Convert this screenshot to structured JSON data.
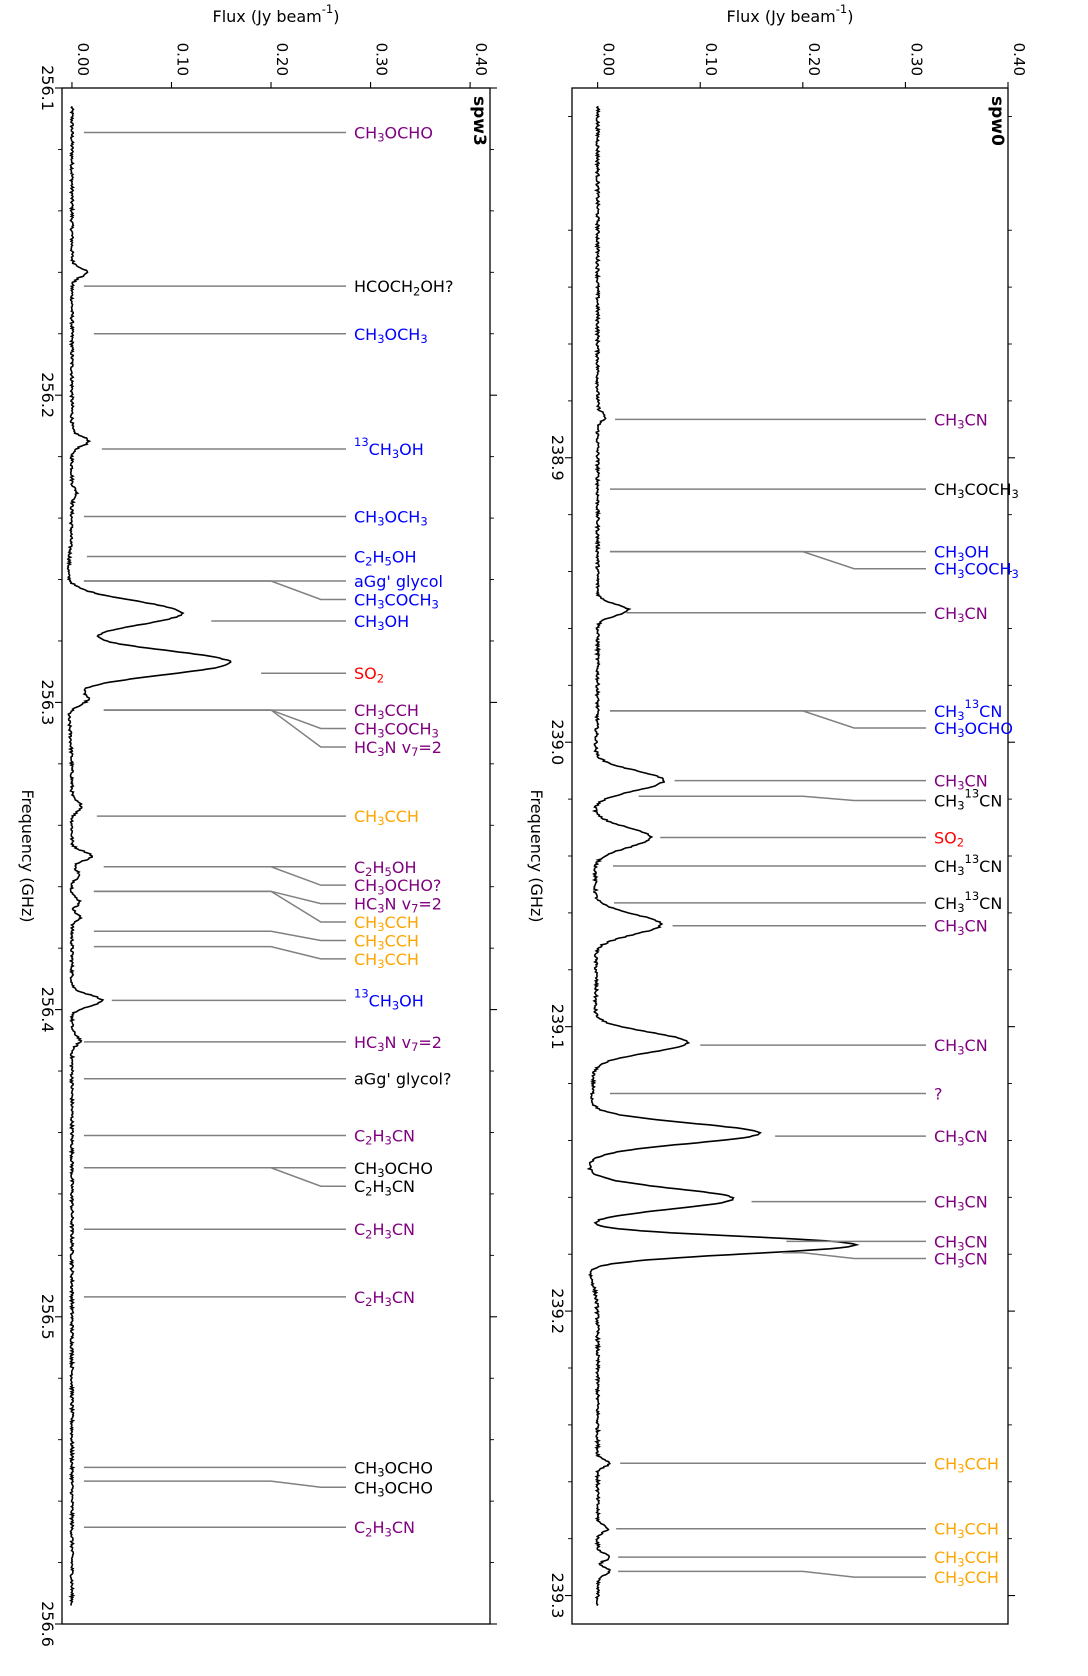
{
  "figure": {
    "xlabel": "Flux (Jy beam$^{-1}$)",
    "ylabel": "Frequency (GHz)",
    "colors": {
      "black": "#000000",
      "purple": "#800080",
      "blue": "#0000ff",
      "red": "#ff0000",
      "orange": "#ffa500",
      "connector": "#808080"
    }
  },
  "chart_data": [
    {
      "type": "line",
      "panel_label": "spw3",
      "xlim": [
        -0.01,
        0.42
      ],
      "ylim": [
        256.6,
        256.1
      ],
      "xticks": [
        "0.00",
        "0.10",
        "0.20",
        "0.30",
        "0.40"
      ],
      "xtick_values": [
        0.0,
        0.1,
        0.2,
        0.3,
        0.4
      ],
      "yticks": [
        "256.1",
        "256.2",
        "256.3",
        "256.4",
        "256.5",
        "256.6"
      ],
      "ytick_values": [
        256.1,
        256.2,
        256.3,
        256.4,
        256.5,
        256.6
      ],
      "baseline": 0.0,
      "spectrum_lines": [
        {
          "freq": 256.16,
          "amp": 0.015,
          "width": 0.0015
        },
        {
          "freq": 256.215,
          "amp": 0.017,
          "width": 0.0015
        },
        {
          "freq": 256.232,
          "amp": 0.005,
          "width": 0.0015
        },
        {
          "freq": 256.271,
          "amp": 0.12,
          "width": 0.004
        },
        {
          "freq": 256.287,
          "amp": 0.17,
          "width": 0.004
        },
        {
          "freq": 256.299,
          "amp": 0.02,
          "width": 0.002
        },
        {
          "freq": 256.334,
          "amp": 0.01,
          "width": 0.0015
        },
        {
          "freq": 256.35,
          "amp": 0.02,
          "width": 0.0015
        },
        {
          "freq": 256.356,
          "amp": 0.007,
          "width": 0.0015
        },
        {
          "freq": 256.365,
          "amp": 0.008,
          "width": 0.0012
        },
        {
          "freq": 256.37,
          "amp": 0.008,
          "width": 0.0012
        },
        {
          "freq": 256.397,
          "amp": 0.03,
          "width": 0.0018
        },
        {
          "freq": 256.41,
          "amp": 0.008,
          "width": 0.0015
        }
      ],
      "annotations": [
        {
          "label": "CH$_3$OCHO",
          "color": "purple",
          "freq": 256.1145,
          "flux": 0.012,
          "label_freq": 256.1145
        },
        {
          "label": "HCOCH$_2$OH?",
          "color": "black",
          "freq": 256.1645,
          "flux": 0.012,
          "label_freq": 256.1645
        },
        {
          "label": "CH$_3$OCH$_3$",
          "color": "blue",
          "freq": 256.18,
          "flux": 0.022,
          "label_freq": 256.18
        },
        {
          "label": "$^{13}$CH$_3$OH",
          "color": "blue",
          "freq": 256.2175,
          "flux": 0.03,
          "label_freq": 256.2175
        },
        {
          "label": "CH$_3$OCH$_3$",
          "color": "blue",
          "freq": 256.2395,
          "flux": 0.012,
          "label_freq": 256.2395
        },
        {
          "label": "C$_2$H$_5$OH",
          "color": "blue",
          "freq": 256.2525,
          "flux": 0.015,
          "label_freq": 256.2525
        },
        {
          "label": "aGg' glycol",
          "color": "blue",
          "freq": 256.2605,
          "flux": 0.012,
          "label_freq": 256.2605
        },
        {
          "label": "CH$_3$COCH$_3$",
          "color": "blue",
          "freq": 256.2605,
          "flux": 0.012,
          "label_freq": 256.2665
        },
        {
          "label": "CH$_3$OH",
          "color": "blue",
          "freq": 256.2735,
          "flux": 0.14,
          "label_freq": 256.2735
        },
        {
          "label": "SO$_2$",
          "color": "red",
          "freq": 256.2905,
          "flux": 0.19,
          "label_freq": 256.2905
        },
        {
          "label": "CH$_3$CCH",
          "color": "purple",
          "freq": 256.3025,
          "flux": 0.032,
          "label_freq": 256.3025
        },
        {
          "label": "CH$_3$COCH$_3$",
          "color": "purple",
          "freq": 256.3025,
          "flux": 0.032,
          "label_freq": 256.3085
        },
        {
          "label": "HC$_3$N v$_7$=2",
          "color": "purple",
          "freq": 256.3025,
          "flux": 0.032,
          "label_freq": 256.3145
        },
        {
          "label": "CH$_3$CCH",
          "color": "orange",
          "freq": 256.337,
          "flux": 0.025,
          "label_freq": 256.337
        },
        {
          "label": "C$_2$H$_5$OH",
          "color": "purple",
          "freq": 256.3535,
          "flux": 0.032,
          "label_freq": 256.3535
        },
        {
          "label": "CH$_3$OCHO?",
          "color": "purple",
          "freq": 256.3535,
          "flux": 0.032,
          "label_freq": 256.3595
        },
        {
          "label": "HC$_3$N v$_7$=2",
          "color": "purple",
          "freq": 256.3615,
          "flux": 0.022,
          "label_freq": 256.3655
        },
        {
          "label": "CH$_3$CCH",
          "color": "orange",
          "freq": 256.3615,
          "flux": 0.022,
          "label_freq": 256.3715
        },
        {
          "label": "CH$_3$CCH",
          "color": "orange",
          "freq": 256.3745,
          "flux": 0.022,
          "label_freq": 256.3775
        },
        {
          "label": "CH$_3$CCH",
          "color": "orange",
          "freq": 256.3795,
          "flux": 0.022,
          "label_freq": 256.3835
        },
        {
          "label": "$^{13}$CH$_3$OH",
          "color": "blue",
          "freq": 256.397,
          "flux": 0.04,
          "label_freq": 256.397
        },
        {
          "label": "HC$_3$N v$_7$=2",
          "color": "purple",
          "freq": 256.4105,
          "flux": 0.012,
          "label_freq": 256.4105
        },
        {
          "label": "aGg' glycol?",
          "color": "black",
          "freq": 256.4225,
          "flux": 0.012,
          "label_freq": 256.4225
        },
        {
          "label": "C$_2$H$_3$CN",
          "color": "purple",
          "freq": 256.441,
          "flux": 0.012,
          "label_freq": 256.441
        },
        {
          "label": "CH$_3$OCHO",
          "color": "black",
          "freq": 256.4515,
          "flux": 0.012,
          "label_freq": 256.4515
        },
        {
          "label": "C$_2$H$_3$CN",
          "color": "black",
          "freq": 256.4515,
          "flux": 0.012,
          "label_freq": 256.4575
        },
        {
          "label": "C$_2$H$_3$CN",
          "color": "purple",
          "freq": 256.4715,
          "flux": 0.012,
          "label_freq": 256.4715
        },
        {
          "label": "C$_2$H$_3$CN",
          "color": "purple",
          "freq": 256.4935,
          "flux": 0.012,
          "label_freq": 256.4935
        },
        {
          "label": "CH$_3$OCHO",
          "color": "black",
          "freq": 256.549,
          "flux": 0.012,
          "label_freq": 256.549
        },
        {
          "label": "CH$_3$OCHO",
          "color": "black",
          "freq": 256.5535,
          "flux": 0.012,
          "label_freq": 256.5555
        },
        {
          "label": "C$_2$H$_3$CN",
          "color": "purple",
          "freq": 256.5685,
          "flux": 0.012,
          "label_freq": 256.5685
        }
      ]
    },
    {
      "type": "line",
      "panel_label": "spw0",
      "xlim": [
        -0.025,
        0.4
      ],
      "ylim": [
        239.31,
        238.77
      ],
      "xticks": [
        "0.00",
        "0.10",
        "0.20",
        "0.30",
        "0.40"
      ],
      "xtick_values": [
        0.0,
        0.1,
        0.2,
        0.3,
        0.4
      ],
      "yticks": [
        "238.9",
        "239.0",
        "239.1",
        "239.2",
        "239.3"
      ],
      "ytick_values": [
        238.9,
        239.0,
        239.1,
        239.2,
        239.3
      ],
      "baseline": 0.0,
      "spectrum_lines": [
        {
          "freq": 238.8855,
          "amp": 0.007,
          "width": 0.0015
        },
        {
          "freq": 238.9535,
          "amp": 0.03,
          "width": 0.002
        },
        {
          "freq": 239.0135,
          "amp": 0.068,
          "width": 0.0035
        },
        {
          "freq": 239.0335,
          "amp": 0.055,
          "width": 0.0035
        },
        {
          "freq": 239.064,
          "amp": 0.065,
          "width": 0.0035
        },
        {
          "freq": 239.1055,
          "amp": 0.092,
          "width": 0.0035
        },
        {
          "freq": 239.1375,
          "amp": 0.167,
          "width": 0.0035
        },
        {
          "freq": 239.1605,
          "amp": 0.143,
          "width": 0.0035
        },
        {
          "freq": 239.1755,
          "amp": 0.14,
          "width": 0.0025
        },
        {
          "freq": 239.178,
          "amp": 0.16,
          "width": 0.0028
        },
        {
          "freq": 239.2535,
          "amp": 0.012,
          "width": 0.0012
        },
        {
          "freq": 239.2765,
          "amp": 0.01,
          "width": 0.0012
        },
        {
          "freq": 239.2865,
          "amp": 0.012,
          "width": 0.0012
        },
        {
          "freq": 239.2915,
          "amp": 0.012,
          "width": 0.0012
        }
      ],
      "annotations": [
        {
          "label": "CH$_3$CN",
          "color": "purple",
          "freq": 238.8865,
          "flux": 0.017,
          "label_freq": 238.8865
        },
        {
          "label": "CH$_3$COCH$_3$",
          "color": "black",
          "freq": 238.911,
          "flux": 0.012,
          "label_freq": 238.911
        },
        {
          "label": "CH$_3$OH",
          "color": "blue",
          "freq": 238.933,
          "flux": 0.012,
          "label_freq": 238.933
        },
        {
          "label": "CH$_3$COCH$_3$",
          "color": "blue",
          "freq": 238.933,
          "flux": 0.012,
          "label_freq": 238.939
        },
        {
          "label": "CH$_3$CN",
          "color": "purple",
          "freq": 238.9545,
          "flux": 0.028,
          "label_freq": 238.9545
        },
        {
          "label": "CH$_3$$^{13}$CN",
          "color": "blue",
          "freq": 238.989,
          "flux": 0.012,
          "label_freq": 238.989
        },
        {
          "label": "CH$_3$OCHO",
          "color": "blue",
          "freq": 238.989,
          "flux": 0.012,
          "label_freq": 238.995
        },
        {
          "label": "CH$_3$CN",
          "color": "purple",
          "freq": 239.0135,
          "flux": 0.075,
          "label_freq": 239.0135
        },
        {
          "label": "CH$_3$$^{13}$CN",
          "color": "black",
          "freq": 239.019,
          "flux": 0.04,
          "label_freq": 239.0205
        },
        {
          "label": "SO$_2$",
          "color": "red",
          "freq": 239.0335,
          "flux": 0.061,
          "label_freq": 239.0335
        },
        {
          "label": "CH$_3$$^{13}$CN",
          "color": "black",
          "freq": 239.0435,
          "flux": 0.015,
          "label_freq": 239.0435
        },
        {
          "label": "CH$_3$$^{13}$CN",
          "color": "black",
          "freq": 239.0565,
          "flux": 0.016,
          "label_freq": 239.0565
        },
        {
          "label": "CH$_3$CN",
          "color": "purple",
          "freq": 239.0645,
          "flux": 0.073,
          "label_freq": 239.0645
        },
        {
          "label": "CH$_3$CN",
          "color": "purple",
          "freq": 239.1065,
          "flux": 0.1,
          "label_freq": 239.1065
        },
        {
          "label": "?",
          "color": "purple",
          "freq": 239.1235,
          "flux": 0.012,
          "label_freq": 239.1235
        },
        {
          "label": "CH$_3$CN",
          "color": "purple",
          "freq": 239.1385,
          "flux": 0.173,
          "label_freq": 239.1385
        },
        {
          "label": "CH$_3$CN",
          "color": "purple",
          "freq": 239.1615,
          "flux": 0.15,
          "label_freq": 239.1615
        },
        {
          "label": "CH$_3$CN",
          "color": "purple",
          "freq": 239.1755,
          "flux": 0.184,
          "label_freq": 239.1755
        },
        {
          "label": "CH$_3$CN",
          "color": "purple",
          "freq": 239.1795,
          "flux": 0.18,
          "label_freq": 239.1815
        },
        {
          "label": "CH$_3$CCH",
          "color": "orange",
          "freq": 239.2535,
          "flux": 0.022,
          "label_freq": 239.2535
        },
        {
          "label": "CH$_3$CCH",
          "color": "orange",
          "freq": 239.2765,
          "flux": 0.018,
          "label_freq": 239.2765
        },
        {
          "label": "CH$_3$CCH",
          "color": "orange",
          "freq": 239.2865,
          "flux": 0.02,
          "label_freq": 239.2865
        },
        {
          "label": "CH$_3$CCH",
          "color": "orange",
          "freq": 239.2915,
          "flux": 0.02,
          "label_freq": 239.2935
        }
      ]
    }
  ]
}
